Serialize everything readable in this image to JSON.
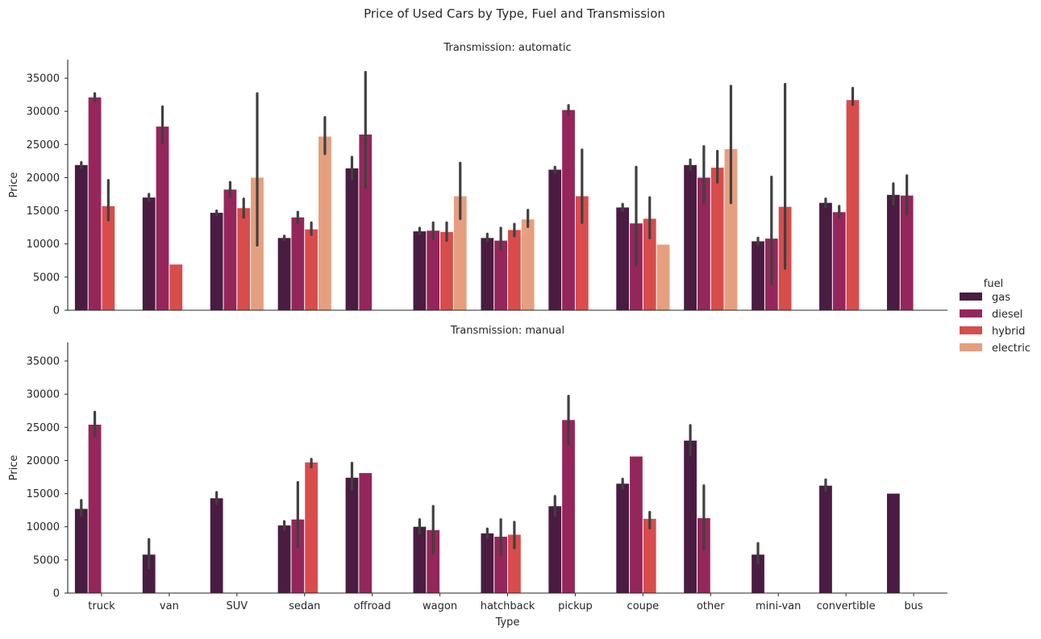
{
  "chart_data": {
    "type": "bar",
    "title": "Price of Used Cars by Type, Fuel and Transmission",
    "xlabel": "Type",
    "ylabel": "Price",
    "ylim": [
      0,
      37800
    ],
    "yticks": [
      0,
      5000,
      10000,
      15000,
      20000,
      25000,
      30000,
      35000
    ],
    "grid": false,
    "legend": {
      "title": "fuel",
      "placement": "right"
    },
    "categories": [
      "truck",
      "van",
      "SUV",
      "sedan",
      "offroad",
      "wagon",
      "hatchback",
      "pickup",
      "coupe",
      "other",
      "mini-van",
      "convertible",
      "bus"
    ],
    "fuels": [
      {
        "name": "gas",
        "color": "#4a1c42"
      },
      {
        "name": "diesel",
        "color": "#95265b"
      },
      {
        "name": "hybrid",
        "color": "#d84c4c"
      },
      {
        "name": "electric",
        "color": "#e69f7e"
      }
    ],
    "error_bar_color": "#404040",
    "panels": [
      {
        "title": "Transmission: automatic",
        "series": [
          {
            "name": "gas",
            "values": [
              21900,
              17000,
              14700,
              10900,
              21400,
              11900,
              10900,
              21200,
              15500,
              21900,
              10400,
              16200,
              17400
            ],
            "ci": [
              [
                21500,
                22300
              ],
              [
                16500,
                17500
              ],
              [
                14400,
                15000
              ],
              [
                10600,
                11200
              ],
              [
                19800,
                23100
              ],
              [
                11500,
                12400
              ],
              [
                10400,
                11500
              ],
              [
                20800,
                21600
              ],
              [
                15000,
                16000
              ],
              [
                21200,
                22700
              ],
              [
                9900,
                10900
              ],
              [
                15600,
                16800
              ],
              [
                16000,
                19100
              ]
            ]
          },
          {
            "name": "diesel",
            "values": [
              32100,
              27700,
              18200,
              14000,
              26500,
              12000,
              10500,
              30200,
              13100,
              20000,
              10800,
              14800,
              17300
            ],
            "ci": [
              [
                31600,
                32700
              ],
              [
                25200,
                30700
              ],
              [
                17100,
                19300
              ],
              [
                13200,
                14800
              ],
              [
                18500,
                35900
              ],
              [
                10800,
                13200
              ],
              [
                9200,
                12400
              ],
              [
                29500,
                30900
              ],
              [
                6800,
                21600
              ],
              [
                16200,
                24700
              ],
              [
                4000,
                20100
              ],
              [
                14000,
                15700
              ],
              [
                14500,
                20300
              ]
            ]
          },
          {
            "name": "hybrid",
            "values": [
              15700,
              6900,
              15400,
              12200,
              null,
              11800,
              12100,
              17200,
              13800,
              21500,
              15600,
              31700,
              null
            ],
            "ci": [
              [
                13600,
                19600
              ],
              null,
              [
                14000,
                16800
              ],
              [
                11400,
                13200
              ],
              null,
              [
                10500,
                13200
              ],
              [
                11200,
                13000
              ],
              [
                13200,
                24200
              ],
              [
                10900,
                17000
              ],
              [
                19300,
                24000
              ],
              [
                6300,
                34100
              ],
              [
                31000,
                33500
              ],
              null
            ]
          },
          {
            "name": "electric",
            "values": [
              null,
              null,
              20000,
              26200,
              null,
              17200,
              13700,
              null,
              9900,
              24300,
              null,
              null,
              null
            ],
            "ci": [
              null,
              null,
              [
                9800,
                32700
              ],
              [
                23600,
                29100
              ],
              null,
              [
                13800,
                22200
              ],
              [
                12600,
                15100
              ],
              null,
              null,
              [
                16200,
                33800
              ],
              null,
              null,
              null
            ]
          }
        ]
      },
      {
        "title": "Transmission: manual",
        "series": [
          {
            "name": "gas",
            "values": [
              12700,
              5800,
              14300,
              10200,
              17400,
              10000,
              9000,
              13100,
              16500,
              23000,
              5800,
              16200,
              15000
            ],
            "ci": [
              [
                11700,
                14000
              ],
              [
                3800,
                8100
              ],
              [
                13500,
                15200
              ],
              [
                9600,
                10800
              ],
              [
                15700,
                19600
              ],
              [
                9000,
                11100
              ],
              [
                8300,
                9700
              ],
              [
                11700,
                14600
              ],
              [
                15800,
                17200
              ],
              [
                20800,
                25300
              ],
              [
                4500,
                7500
              ],
              [
                15500,
                17100
              ],
              null
            ]
          },
          {
            "name": "diesel",
            "values": [
              25400,
              null,
              null,
              11100,
              18100,
              9500,
              8500,
              26100,
              20600,
              11300,
              null,
              null,
              null
            ],
            "ci": [
              [
                23700,
                27300
              ],
              null,
              null,
              [
                6900,
                16700
              ],
              null,
              [
                6000,
                13100
              ],
              [
                5800,
                11100
              ],
              [
                22400,
                29700
              ],
              null,
              [
                6600,
                16200
              ],
              null,
              null,
              null
            ]
          },
          {
            "name": "hybrid",
            "values": [
              null,
              null,
              null,
              19700,
              null,
              null,
              8800,
              null,
              11200,
              null,
              null,
              null,
              null
            ],
            "ci": [
              null,
              null,
              null,
              [
                19000,
                20200
              ],
              null,
              null,
              [
                6800,
                10700
              ],
              null,
              [
                9800,
                12200
              ],
              null,
              null,
              null,
              null
            ]
          },
          {
            "name": "electric",
            "values": [
              null,
              null,
              null,
              null,
              null,
              null,
              null,
              null,
              null,
              null,
              null,
              null,
              null
            ],
            "ci": [
              null,
              null,
              null,
              null,
              null,
              null,
              null,
              null,
              null,
              null,
              null,
              null,
              null
            ]
          }
        ]
      }
    ]
  }
}
